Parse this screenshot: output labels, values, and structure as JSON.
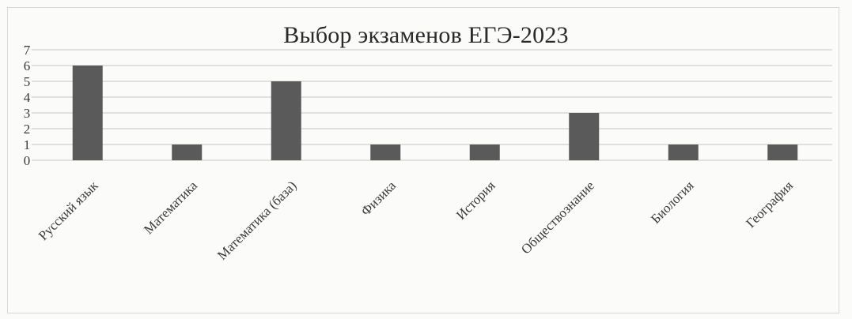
{
  "chart_data": {
    "type": "bar",
    "title": "Выбор экзаменов ЕГЭ-2023",
    "categories": [
      "Русский язык",
      "Математика",
      "Математика (база)",
      "Физика",
      "История",
      "Обществознание",
      "Биология",
      "География"
    ],
    "values": [
      6,
      1,
      5,
      1,
      1,
      3,
      1,
      1
    ],
    "ylim": [
      0,
      7
    ],
    "yticks": [
      0,
      1,
      2,
      3,
      4,
      5,
      6,
      7
    ],
    "grid": true,
    "legend": "none",
    "bar_color": "#5a5a5a",
    "grid_color": "#cfcfcf",
    "text_color": "#3a3a3a"
  }
}
